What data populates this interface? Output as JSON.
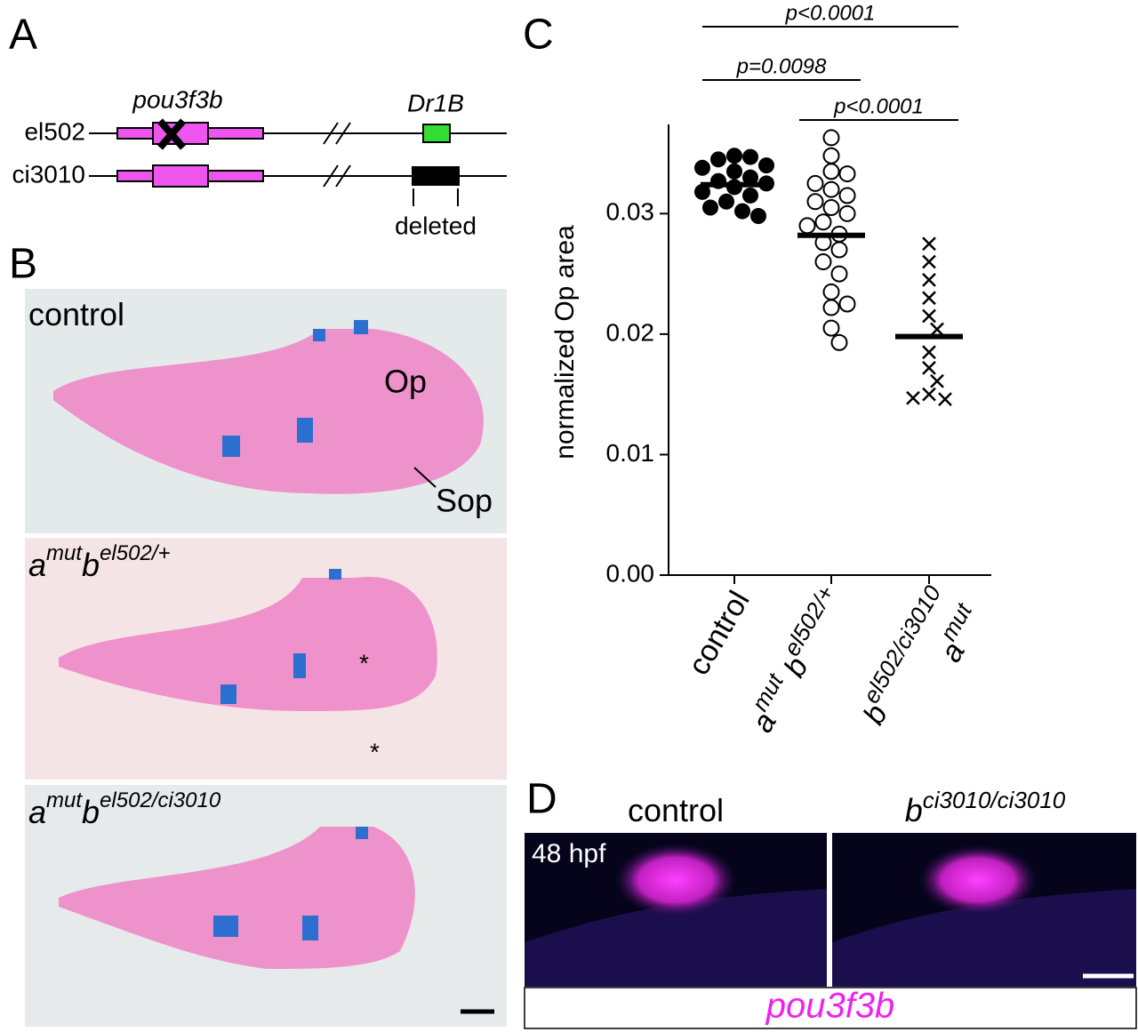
{
  "panel_labels": [
    "A",
    "B",
    "C",
    "D"
  ],
  "panel_a": {
    "gene": "pou3f3b",
    "enhancer": "Dr1B",
    "alleles": [
      "el502",
      "ci3010"
    ],
    "deletion_label": "deleted"
  },
  "panel_b": {
    "genotypes": [
      [
        "control"
      ],
      [
        "a",
        "mut",
        "b",
        "el502/+"
      ],
      [
        "a",
        "mut",
        "b",
        "el502/ci3010"
      ]
    ],
    "annotations": [
      "Op",
      "Sop",
      "*",
      "*"
    ]
  },
  "chart_data": {
    "type": "strip",
    "y_label": "normalized Op area",
    "categories": [
      [
        "control"
      ],
      [
        "a",
        "mut",
        " b",
        "el502/+"
      ],
      [
        "a",
        "mut",
        "b",
        "el502/ci3010"
      ]
    ],
    "series": [
      {
        "marker": "filled-circle",
        "values": [
          0.0348,
          0.0347,
          0.0345,
          0.034,
          0.0338,
          0.0335,
          0.033,
          0.0327,
          0.0325,
          0.0322,
          0.0318,
          0.0315,
          0.031,
          0.0305,
          0.0302,
          0.0298
        ]
      },
      {
        "marker": "open-circle",
        "values": [
          0.0363,
          0.0348,
          0.0335,
          0.0333,
          0.0325,
          0.032,
          0.0315,
          0.031,
          0.0305,
          0.03,
          0.0293,
          0.029,
          0.0283,
          0.0276,
          0.027,
          0.026,
          0.025,
          0.0235,
          0.0225,
          0.0222,
          0.0205,
          0.0193
        ]
      },
      {
        "marker": "cross",
        "values": [
          0.0275,
          0.026,
          0.0245,
          0.023,
          0.0215,
          0.0204,
          0.0185,
          0.0172,
          0.0161,
          0.015,
          0.0146,
          0.0147
        ]
      }
    ],
    "mean_values": [
      0.0324,
      0.0282,
      0.0198
    ],
    "comparisons": [
      {
        "groups": [
          0,
          2
        ],
        "label": "p<0.0001"
      },
      {
        "groups": [
          0,
          1
        ],
        "label": "p=0.0098"
      },
      {
        "groups": [
          1,
          2
        ],
        "label": "p<0.0001"
      }
    ],
    "ylim": [
      0,
      0.0374
    ],
    "yticks": [
      {
        "value": 0,
        "label": "0.00"
      },
      0.01,
      0.02,
      0.03
    ]
  },
  "panel_d": {
    "titles": [
      [
        "control"
      ],
      [
        "b",
        "ci3010/ci3010"
      ]
    ],
    "stage": "48 hpf",
    "stain": "pou3f3b"
  }
}
